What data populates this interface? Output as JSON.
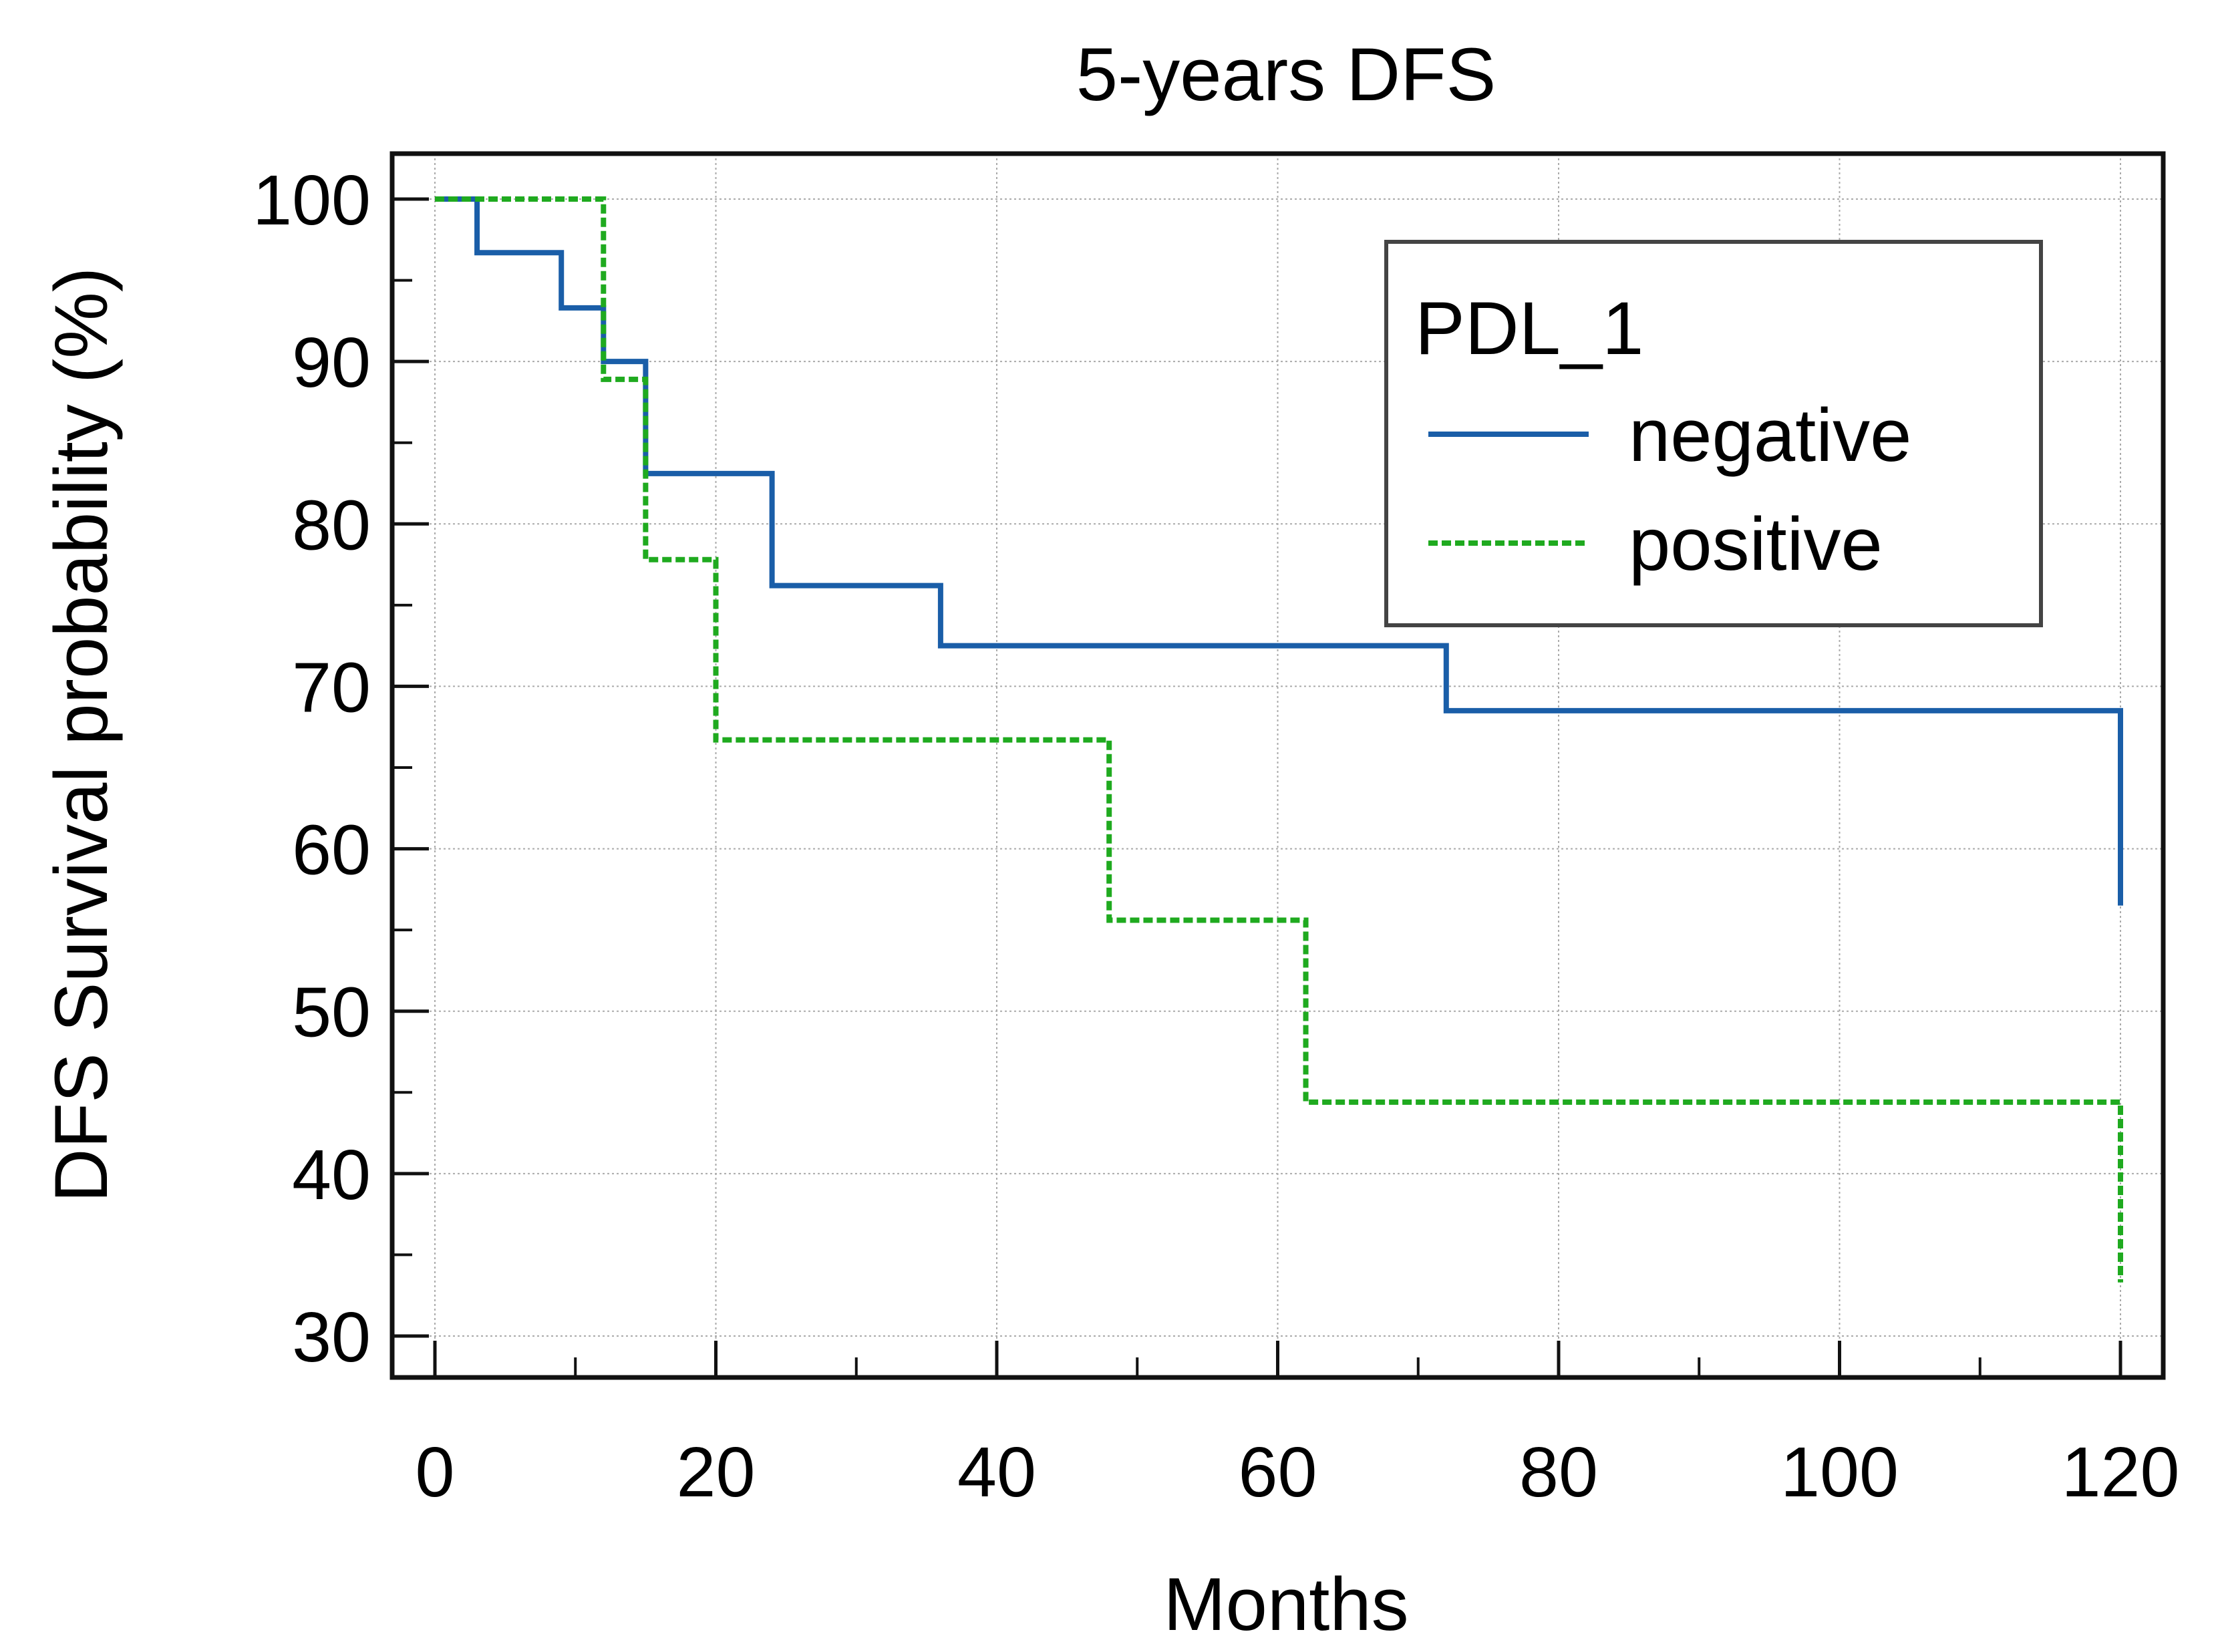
{
  "chart_data": {
    "type": "line",
    "step": true,
    "title": "5-years DFS",
    "xlabel": "Months",
    "ylabel": "DFS Survival probability (%)",
    "xlim": [
      0,
      120
    ],
    "ylim": [
      30,
      100
    ],
    "xticks": [
      0,
      20,
      40,
      60,
      80,
      100,
      120
    ],
    "yticks": [
      30,
      40,
      50,
      60,
      70,
      80,
      90,
      100
    ],
    "grid": true,
    "legend": {
      "title": "PDL_1",
      "placement": "top-right"
    },
    "series": [
      {
        "name": "negative",
        "color": "#1a5ea8",
        "dash": "solid",
        "x": [
          0,
          3,
          9,
          12,
          15,
          24,
          36,
          72,
          120
        ],
        "y": [
          100,
          96.7,
          93.3,
          90.0,
          83.1,
          76.2,
          72.5,
          68.5,
          56.5
        ]
      },
      {
        "name": "positive",
        "color": "#1faa1f",
        "dash": "dashed",
        "x": [
          0,
          12,
          15,
          20,
          48,
          62,
          120
        ],
        "y": [
          100,
          88.9,
          77.8,
          66.7,
          55.6,
          44.4,
          33.3
        ]
      }
    ]
  }
}
